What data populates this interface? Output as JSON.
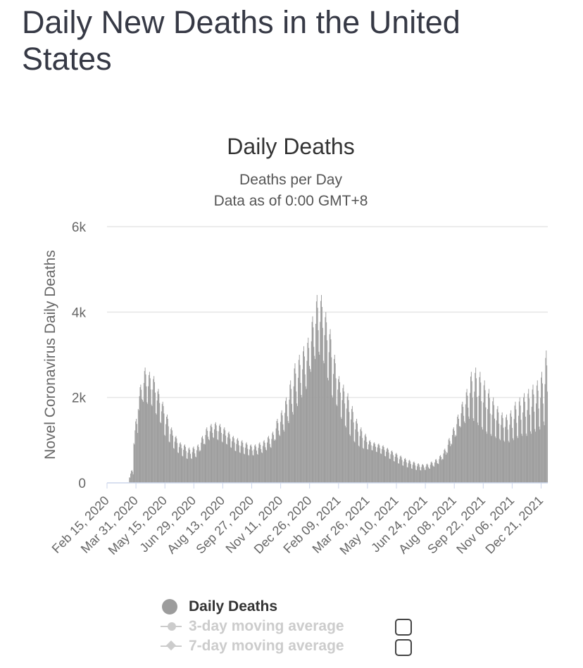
{
  "page": {
    "title": "Daily New Deaths in the United States"
  },
  "colors": {
    "bar": "#9c9c9c",
    "grid": "#e6e6e6",
    "axis": "#ccd6eb",
    "title": "#333333",
    "muted": "#666666",
    "legend_inactive": "#cccccc"
  },
  "legend": {
    "items": [
      {
        "label": "Daily Deaths",
        "active": true
      },
      {
        "label": "3-day moving average",
        "active": false
      },
      {
        "label": "7-day moving average",
        "active": false
      }
    ]
  },
  "chart_data": {
    "type": "bar",
    "title": "Daily Deaths",
    "subtitle_lines": [
      "Deaths per Day",
      "Data as of 0:00 GMT+8"
    ],
    "ylabel": "Novel Coronavirus Daily Deaths",
    "xlabel": "",
    "ylim": [
      0,
      6000
    ],
    "yticks": [
      0,
      2000,
      4000,
      6000
    ],
    "ytick_labels": [
      "0",
      "2k",
      "4k",
      "6k"
    ],
    "xtick_labels": [
      "Feb 15, 2020",
      "Mar 31, 2020",
      "May 15, 2020",
      "Jun 29, 2020",
      "Aug 13, 2020",
      "Sep 27, 2020",
      "Nov 11, 2020",
      "Dec 26, 2020",
      "Feb 09, 2021",
      "Mar 26, 2021",
      "May 10, 2021",
      "Jun 24, 2021",
      "Aug 08, 2021",
      "Sep 22, 2021",
      "Nov 06, 2021",
      "Dec 21, 2021"
    ],
    "grid": true,
    "legend_position": "bottom",
    "series": [
      {
        "name": "Daily Deaths",
        "note": "weekly base and weekday peak values (deaths per day), read from bar heights",
        "weekly": {
          "weeks": [
            "Feb 15, 2020",
            "Feb 22, 2020",
            "Feb 29, 2020",
            "Mar 07, 2020",
            "Mar 14, 2020",
            "Mar 21, 2020",
            "Mar 28, 2020",
            "Apr 04, 2020",
            "Apr 11, 2020",
            "Apr 18, 2020",
            "Apr 25, 2020",
            "May 02, 2020",
            "May 09, 2020",
            "May 16, 2020",
            "May 23, 2020",
            "May 30, 2020",
            "Jun 06, 2020",
            "Jun 13, 2020",
            "Jun 20, 2020",
            "Jun 27, 2020",
            "Jul 04, 2020",
            "Jul 11, 2020",
            "Jul 18, 2020",
            "Jul 25, 2020",
            "Aug 01, 2020",
            "Aug 08, 2020",
            "Aug 15, 2020",
            "Aug 22, 2020",
            "Aug 29, 2020",
            "Sep 05, 2020",
            "Sep 12, 2020",
            "Sep 19, 2020",
            "Sep 26, 2020",
            "Oct 03, 2020",
            "Oct 10, 2020",
            "Oct 17, 2020",
            "Oct 24, 2020",
            "Oct 31, 2020",
            "Nov 07, 2020",
            "Nov 14, 2020",
            "Nov 21, 2020",
            "Nov 28, 2020",
            "Dec 05, 2020",
            "Dec 12, 2020",
            "Dec 19, 2020",
            "Dec 26, 2020",
            "Jan 02, 2021",
            "Jan 09, 2021",
            "Jan 16, 2021",
            "Jan 23, 2021",
            "Jan 30, 2021",
            "Feb 06, 2021",
            "Feb 13, 2021",
            "Feb 20, 2021",
            "Feb 27, 2021",
            "Mar 06, 2021",
            "Mar 13, 2021",
            "Mar 20, 2021",
            "Mar 27, 2021",
            "Apr 03, 2021",
            "Apr 10, 2021",
            "Apr 17, 2021",
            "Apr 24, 2021",
            "May 01, 2021",
            "May 08, 2021",
            "May 15, 2021",
            "May 22, 2021",
            "May 29, 2021",
            "Jun 05, 2021",
            "Jun 12, 2021",
            "Jun 19, 2021",
            "Jun 26, 2021",
            "Jul 03, 2021",
            "Jul 10, 2021",
            "Jul 17, 2021",
            "Jul 24, 2021",
            "Jul 31, 2021",
            "Aug 07, 2021",
            "Aug 14, 2021",
            "Aug 21, 2021",
            "Aug 28, 2021",
            "Sep 04, 2021",
            "Sep 11, 2021",
            "Sep 18, 2021",
            "Sep 25, 2021",
            "Oct 02, 2021",
            "Oct 09, 2021",
            "Oct 16, 2021",
            "Oct 23, 2021",
            "Oct 30, 2021",
            "Nov 06, 2021",
            "Nov 13, 2021",
            "Nov 20, 2021",
            "Nov 27, 2021",
            "Dec 04, 2021",
            "Dec 11, 2021",
            "Dec 18, 2021",
            "Dec 25, 2021",
            "Jan 01, 2022"
          ],
          "base": [
            0,
            0,
            0,
            0,
            5,
            120,
            900,
            1700,
            1900,
            1850,
            1800,
            1600,
            1400,
            1100,
            950,
            800,
            700,
            620,
            560,
            560,
            600,
            750,
            900,
            1000,
            1050,
            1000,
            950,
            900,
            820,
            740,
            700,
            670,
            640,
            640,
            660,
            700,
            760,
            820,
            1000,
            1100,
            1200,
            1400,
            1600,
            1800,
            2000,
            2200,
            2600,
            2900,
            3000,
            2800,
            2400,
            2000,
            1800,
            1500,
            1300,
            1100,
            950,
            850,
            800,
            780,
            760,
            720,
            680,
            620,
            560,
            500,
            450,
            400,
            360,
            330,
            300,
            290,
            300,
            330,
            380,
            440,
            550,
            700,
            900,
            1100,
            1300,
            1400,
            1500,
            1450,
            1350,
            1250,
            1150,
            1100,
            1050,
            1000,
            960,
            950,
            1000,
            1050,
            1100,
            1100,
            1150,
            1200,
            1250,
            1350
          ],
          "peak": [
            0,
            0,
            0,
            0,
            10,
            300,
            1500,
            2300,
            2700,
            2600,
            2500,
            2200,
            1900,
            1600,
            1300,
            1100,
            950,
            900,
            830,
            850,
            900,
            1100,
            1300,
            1380,
            1420,
            1380,
            1300,
            1200,
            1100,
            1050,
            1000,
            950,
            900,
            900,
            950,
            1000,
            1100,
            1200,
            1500,
            1700,
            2000,
            2400,
            2800,
            3000,
            3200,
            3400,
            3900,
            4400,
            4400,
            4000,
            3600,
            3000,
            2500,
            2300,
            2100,
            1800,
            1500,
            1300,
            1150,
            1000,
            950,
            920,
            880,
            820,
            760,
            700,
            640,
            580,
            540,
            500,
            460,
            440,
            450,
            500,
            560,
            650,
            800,
            1050,
            1300,
            1600,
            1900,
            2200,
            2600,
            2700,
            2600,
            2400,
            2200,
            2000,
            1800,
            1650,
            1600,
            1700,
            1900,
            2000,
            2100,
            2200,
            2300,
            2400,
            2600,
            3100
          ]
        }
      }
    ]
  }
}
